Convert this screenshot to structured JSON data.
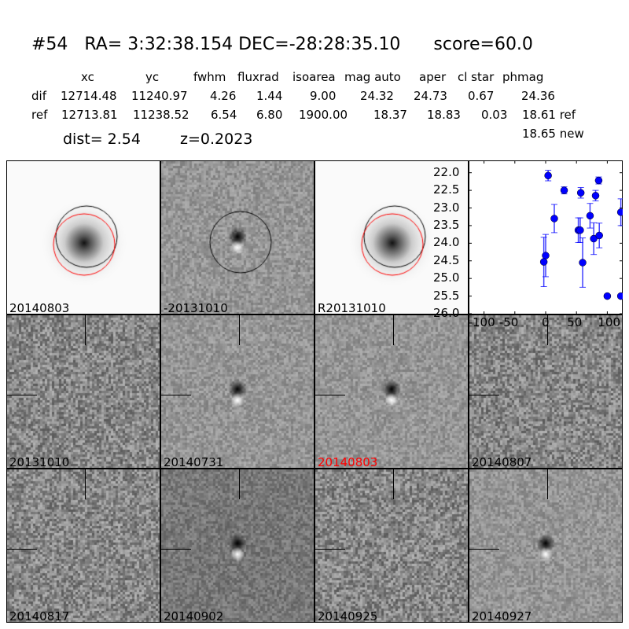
{
  "title": "#54   RA= 3:32:38.154 DEC=-28:28:35.10      score=60.0",
  "table": {
    "headers": [
      "xc",
      "yc",
      "fwhm",
      "fluxrad",
      "isoarea",
      "mag auto",
      "aper",
      "cl star",
      "phmag"
    ],
    "rows": [
      {
        "label": "dif",
        "values": [
          "12714.48",
          "11240.97",
          "4.26",
          "1.44",
          "9.00",
          "24.32",
          "24.73",
          "0.67",
          "24.36"
        ]
      },
      {
        "label": "ref",
        "values": [
          "12713.81",
          "11238.52",
          "6.54",
          "6.80",
          "1900.00",
          "18.37",
          "18.83",
          "0.03",
          "18.61 ref"
        ]
      }
    ],
    "extra": "18.65 new"
  },
  "dist": "dist=  2.54",
  "z": "z=0.2023",
  "panels": [
    {
      "label": "20140803",
      "kind": "galaxy"
    },
    {
      "label": "-20131010",
      "kind": "diff"
    },
    {
      "label": "R20131010",
      "kind": "galaxy"
    },
    {
      "label": "20131010",
      "kind": "noise"
    },
    {
      "label": "20140731",
      "kind": "diff2"
    },
    {
      "label": "20140803",
      "kind": "diff2",
      "highlight": "#ff0000"
    },
    {
      "label": "20140807",
      "kind": "noise"
    },
    {
      "label": "20140817",
      "kind": "noise"
    },
    {
      "label": "20140902",
      "kind": "diff3"
    },
    {
      "label": "20140925",
      "kind": "noise"
    },
    {
      "label": "20140927",
      "kind": "diff2"
    }
  ],
  "chart_data": {
    "type": "scatter",
    "xlim": [
      -125,
      125
    ],
    "ylim": [
      26.0,
      21.65
    ],
    "y_inverted": true,
    "xticks": [
      "-100",
      "-50",
      "0",
      "50",
      "100"
    ],
    "xtick_values": [
      -100,
      -50,
      0,
      50,
      100
    ],
    "yticks": [
      "22.0",
      "22.5",
      "23.0",
      "23.5",
      "24.0",
      "24.5",
      "25.0",
      "25.5",
      "26.0"
    ],
    "ytick_values": [
      22.0,
      22.5,
      23.0,
      23.5,
      24.0,
      24.5,
      25.0,
      25.5,
      26.0
    ],
    "color": "#0000ff",
    "points": [
      {
        "x": 4,
        "y": 22.08,
        "err": 0.15
      },
      {
        "x": 30,
        "y": 22.5,
        "err": 0.1
      },
      {
        "x": 57,
        "y": 22.57,
        "err": 0.15
      },
      {
        "x": 81,
        "y": 22.65,
        "err": 0.15
      },
      {
        "x": 86,
        "y": 22.22,
        "err": 0.1
      },
      {
        "x": 14,
        "y": 23.3,
        "err": 0.4
      },
      {
        "x": 53,
        "y": 23.63,
        "err": 0.35
      },
      {
        "x": 56,
        "y": 23.63,
        "err": 0.35
      },
      {
        "x": 72,
        "y": 23.22,
        "err": 0.35
      },
      {
        "x": 78,
        "y": 23.87,
        "err": 0.45
      },
      {
        "x": 87,
        "y": 23.78,
        "err": 0.35
      },
      {
        "x": 0,
        "y": 24.35,
        "err": 0.6
      },
      {
        "x": -3,
        "y": 24.53,
        "err": 0.7
      },
      {
        "x": 60,
        "y": 24.55,
        "err": 0.7
      },
      {
        "x": 122,
        "y": 23.12,
        "err": 0.38
      },
      {
        "x": 100,
        "y": 25.5,
        "err": 0.05
      },
      {
        "x": 122,
        "y": 25.5,
        "err": 0.05
      }
    ]
  }
}
